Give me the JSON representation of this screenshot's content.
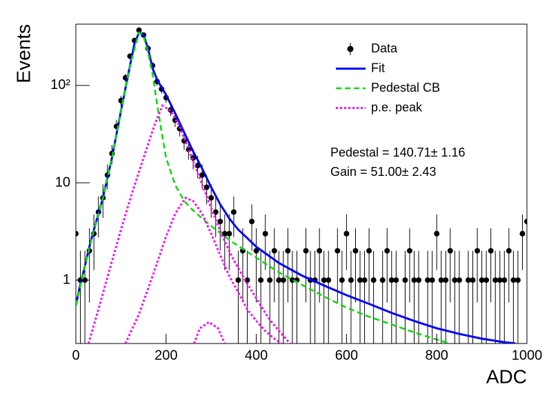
{
  "chart_data": {
    "type": "errorbar",
    "x_label": "ADC",
    "y_label": "Events",
    "log_y": true,
    "xlim": [
      0,
      1000
    ],
    "ylim": [
      0.223,
      427
    ],
    "xticks": [
      0,
      200,
      400,
      600,
      800,
      1000
    ],
    "yticks": [
      1,
      10,
      {
        "value": 100,
        "label": "10²"
      }
    ],
    "legend": "top-right",
    "annotations": [
      "Pedestal = 140.71± 1.16",
      "Gain = 51.00± 2.43"
    ],
    "series": [
      {
        "name": "Data",
        "style": "points",
        "color": "#000000",
        "x": [
          0,
          10,
          20,
          30,
          40,
          50,
          60,
          70,
          80,
          90,
          100,
          110,
          120,
          130,
          140,
          150,
          160,
          170,
          180,
          190,
          200,
          210,
          220,
          230,
          240,
          250,
          260,
          270,
          280,
          290,
          300,
          310,
          320,
          330,
          340,
          350,
          360,
          370,
          380,
          390,
          400,
          410,
          420,
          430,
          440,
          450,
          460,
          470,
          480,
          490,
          500,
          510,
          520,
          530,
          540,
          550,
          560,
          570,
          580,
          590,
          600,
          610,
          620,
          630,
          640,
          650,
          660,
          670,
          680,
          690,
          700,
          710,
          720,
          730,
          740,
          750,
          760,
          770,
          780,
          790,
          800,
          810,
          820,
          830,
          840,
          850,
          860,
          870,
          880,
          890,
          900,
          910,
          920,
          930,
          940,
          950,
          960,
          970,
          980,
          990,
          1000
        ],
        "values": [
          3,
          1,
          1,
          2,
          3,
          5,
          7,
          12,
          20,
          38,
          70,
          120,
          200,
          290,
          370,
          330,
          240,
          160,
          110,
          92,
          75,
          56,
          44,
          36,
          27,
          22,
          18,
          15,
          12,
          9,
          7,
          5,
          4,
          3,
          3,
          5,
          1,
          2,
          1,
          4,
          2,
          1,
          3,
          1,
          2,
          1,
          1,
          2,
          1,
          1,
          null,
          2,
          1,
          1,
          2,
          1,
          1,
          null,
          2,
          1,
          3,
          1,
          2,
          1,
          1,
          2,
          1,
          null,
          1,
          2,
          1,
          1,
          null,
          1,
          2,
          1,
          1,
          null,
          1,
          1,
          3,
          1,
          1,
          2,
          1,
          1,
          null,
          1,
          1,
          2,
          1,
          1,
          2,
          1,
          1,
          1,
          2,
          1,
          1,
          3,
          4
        ],
        "errors": [
          1.73,
          1,
          1,
          1.41,
          1.73,
          2.24,
          2.65,
          3.46,
          4.47,
          6.16,
          8.37,
          10.95,
          14.14,
          17.03,
          19.24,
          18.17,
          15.49,
          12.65,
          10.49,
          9.59,
          8.66,
          7.48,
          6.63,
          6,
          5.2,
          4.69,
          4.24,
          3.87,
          3.46,
          3,
          2.65,
          2.24,
          2,
          1.73,
          1.73,
          2.24,
          1,
          1.41,
          1,
          2,
          1.41,
          1,
          1.73,
          1,
          1.41,
          1,
          1,
          1.41,
          1,
          1,
          null,
          1.41,
          1,
          1,
          1.41,
          1,
          1,
          null,
          1.41,
          1,
          1.73,
          1,
          1.41,
          1,
          1,
          1.41,
          1,
          null,
          1,
          1.41,
          1,
          1,
          null,
          1,
          1.41,
          1,
          1,
          null,
          1,
          1,
          1.73,
          1,
          1,
          1.41,
          1,
          1,
          null,
          1,
          1,
          1.41,
          1,
          1,
          1.41,
          1,
          1,
          1,
          1.41,
          1,
          1,
          1.73,
          2
        ]
      },
      {
        "name": "Fit",
        "style": "solid",
        "color": "#0000ff",
        "x": [
          0,
          10,
          20,
          30,
          40,
          60,
          80,
          100,
          120,
          130,
          140,
          150,
          160,
          170,
          180,
          200,
          220,
          240,
          260,
          280,
          300,
          320,
          340,
          360,
          380,
          400,
          450,
          500,
          550,
          600,
          650,
          700,
          750,
          800,
          850,
          900,
          950,
          975
        ],
        "values": [
          0.55,
          0.9,
          1.4,
          2.2,
          3.3,
          7,
          18,
          55,
          160,
          270,
          350,
          330,
          240,
          150,
          115,
          80,
          52,
          33,
          21,
          14,
          9,
          6,
          4.3,
          3.3,
          2.7,
          2.2,
          1.5,
          1.12,
          0.88,
          0.7,
          0.57,
          0.46,
          0.38,
          0.32,
          0.28,
          0.25,
          0.23,
          0.223
        ]
      },
      {
        "name": "Pedestal CB",
        "style": "dashed",
        "color": "#00dd00",
        "x": [
          0,
          20,
          40,
          60,
          80,
          100,
          120,
          140,
          150,
          160,
          170,
          180,
          190,
          200,
          220,
          240,
          260,
          280,
          300,
          350,
          400,
          450,
          500,
          550,
          600,
          650,
          700,
          750,
          800,
          830
        ],
        "values": [
          0.55,
          1.4,
          3.3,
          7,
          18,
          55,
          160,
          350,
          320,
          220,
          130,
          65,
          33,
          18,
          9.5,
          6.5,
          5.2,
          4.3,
          3.6,
          2.4,
          1.7,
          1.2,
          0.9,
          0.68,
          0.52,
          0.42,
          0.35,
          0.29,
          0.245,
          0.223
        ]
      },
      {
        "name": "p.e. peak",
        "style": "dotted",
        "color": "#ff00ff",
        "x": [
          28,
          50,
          75,
          100,
          125,
          150,
          175,
          192,
          210,
          230,
          250,
          275,
          300,
          325,
          350,
          375,
          400,
          425,
          450,
          475,
          null,
          110,
          140,
          170,
          200,
          220,
          243,
          260,
          280,
          300,
          320,
          340,
          360,
          380,
          400,
          420,
          440,
          455,
          null,
          262,
          275,
          295,
          315,
          330
        ],
        "values": [
          0.223,
          0.5,
          1.3,
          3.3,
          8,
          18,
          40,
          62,
          55,
          38,
          22,
          11,
          5.5,
          2.8,
          1.6,
          1.0,
          0.65,
          0.42,
          0.3,
          0.223,
          null,
          0.223,
          0.45,
          1.1,
          2.8,
          4.8,
          7,
          6.5,
          4.8,
          3,
          1.8,
          1.1,
          0.75,
          0.5,
          0.38,
          0.3,
          0.25,
          0.223,
          null,
          0.223,
          0.32,
          0.37,
          0.32,
          0.223
        ]
      }
    ]
  }
}
